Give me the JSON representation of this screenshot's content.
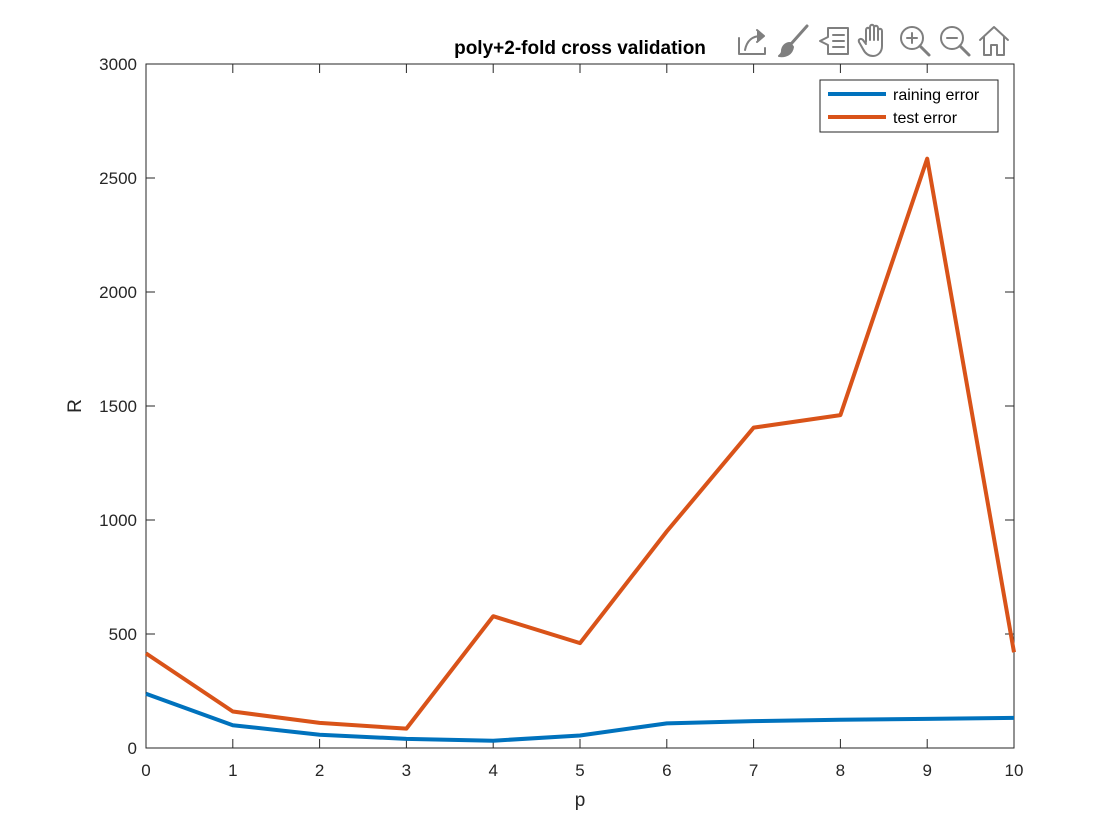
{
  "toolbar": {
    "buttons": [
      {
        "name": "export-icon"
      },
      {
        "name": "brush-icon"
      },
      {
        "name": "data-tips-icon"
      },
      {
        "name": "pan-hand-icon"
      },
      {
        "name": "zoom-in-icon"
      },
      {
        "name": "zoom-out-icon"
      },
      {
        "name": "home-icon"
      }
    ],
    "icon_color": "#7f7f7f"
  },
  "chart_data": {
    "type": "line",
    "title": "poly+2-fold cross validation",
    "xlabel": "p",
    "ylabel": "R",
    "xlim": [
      0,
      10
    ],
    "ylim": [
      0,
      3000
    ],
    "xticks": [
      0,
      1,
      2,
      3,
      4,
      5,
      6,
      7,
      8,
      9,
      10
    ],
    "yticks": [
      0,
      500,
      1000,
      1500,
      2000,
      2500,
      3000
    ],
    "grid": false,
    "legend_position": "top-right",
    "x": [
      0,
      1,
      2,
      3,
      4,
      5,
      6,
      7,
      8,
      9,
      10
    ],
    "series": [
      {
        "name": "raining error",
        "color": "#0072BD",
        "values": [
          238,
          100,
          58,
          40,
          32,
          55,
          108,
          118,
          124,
          128,
          132
        ]
      },
      {
        "name": "test error",
        "color": "#D95319",
        "values": [
          415,
          160,
          110,
          85,
          578,
          460,
          950,
          1405,
          1460,
          2585,
          420
        ]
      }
    ]
  }
}
